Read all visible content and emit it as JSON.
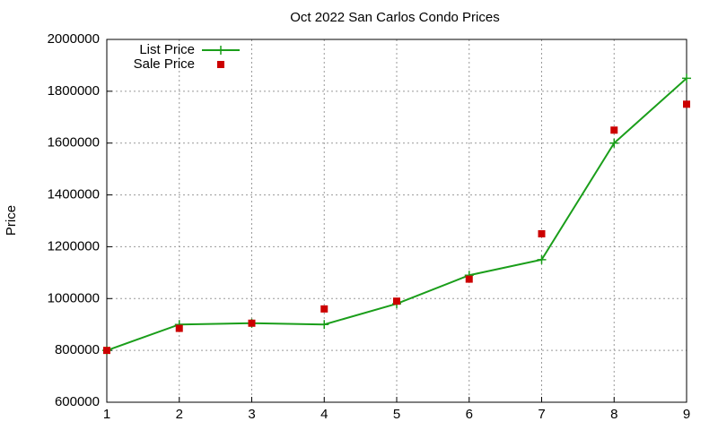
{
  "chart_data": {
    "type": "line",
    "title": "Oct 2022 San Carlos Condo Prices",
    "y_label": "Price",
    "x": [
      1,
      2,
      3,
      4,
      5,
      6,
      7,
      8,
      9
    ],
    "series": [
      {
        "name": "List Price",
        "color": "#1a9e1a",
        "style": "linespoints",
        "values": [
          800000,
          900000,
          905000,
          900000,
          980000,
          1090000,
          1150000,
          1600000,
          1850000
        ]
      },
      {
        "name": "Sale Price",
        "color": "#cc0000",
        "style": "points",
        "values": [
          800000,
          885000,
          905000,
          960000,
          990000,
          1075000,
          1250000,
          1650000,
          1750000
        ]
      }
    ],
    "xlim": [
      1,
      9
    ],
    "xticks": [
      1,
      2,
      3,
      4,
      5,
      6,
      7,
      8,
      9
    ],
    "ylim": [
      600000,
      2000000
    ],
    "yticks": [
      600000,
      800000,
      1000000,
      1200000,
      1400000,
      1600000,
      1800000,
      2000000
    ],
    "grid": true,
    "legend": "top-left"
  }
}
